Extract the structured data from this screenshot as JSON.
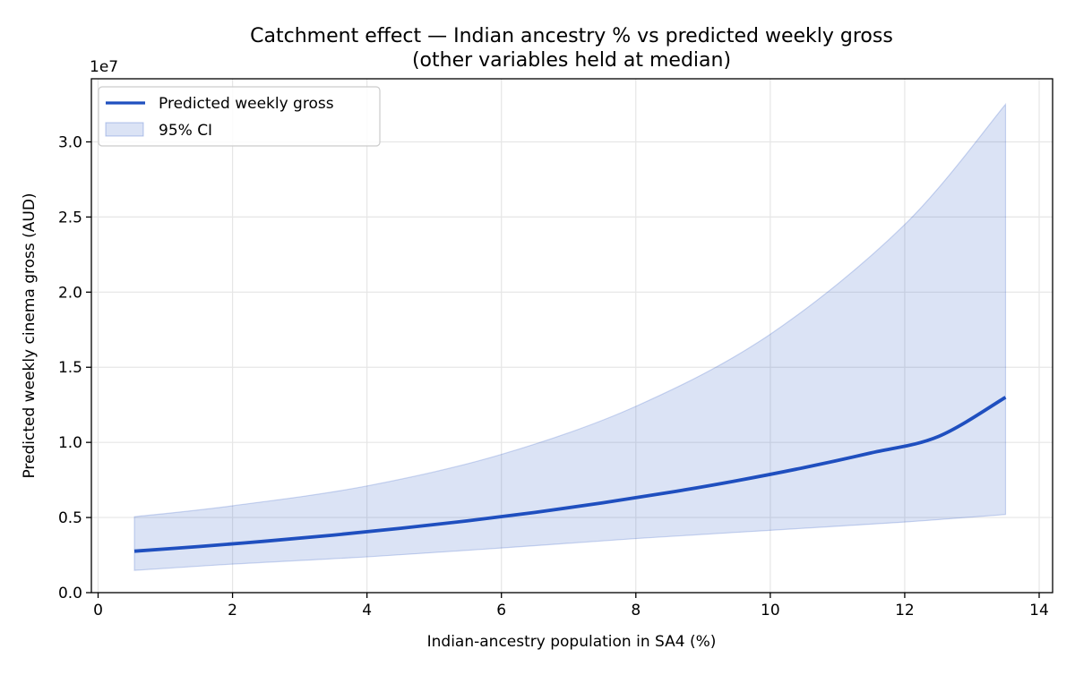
{
  "chart_data": {
    "type": "line",
    "title": "Catchment effect — Indian ancestry % vs predicted weekly gross",
    "subtitle": "(other variables held at median)",
    "xlabel": "Indian-ancestry population in SA4 (%)",
    "ylabel": "Predicted weekly cinema gross (AUD)",
    "y_offset_label": "1e7",
    "xlim": [
      -0.1,
      14.2
    ],
    "ylim": [
      0,
      3.42
    ],
    "x_ticks": [
      0,
      2,
      4,
      6,
      8,
      10,
      12,
      14
    ],
    "y_ticks": [
      0.0,
      0.5,
      1.0,
      1.5,
      2.0,
      2.5,
      3.0
    ],
    "x_tick_labels": [
      "0",
      "2",
      "4",
      "6",
      "8",
      "10",
      "12",
      "14"
    ],
    "y_tick_labels": [
      "0.0",
      "0.5",
      "1.0",
      "1.5",
      "2.0",
      "2.5",
      "3.0"
    ],
    "grid": true,
    "legend_position": "top-left",
    "series": [
      {
        "name": "Predicted weekly gross",
        "color": "#1f4fbf",
        "x": [
          0.54,
          1.5,
          2.5,
          3.5,
          4.5,
          5.5,
          6.5,
          7.5,
          8.5,
          9.5,
          10.5,
          11.5,
          12.5,
          13.5
        ],
        "values": [
          0.276,
          0.307,
          0.343,
          0.383,
          0.428,
          0.478,
          0.534,
          0.597,
          0.667,
          0.745,
          0.832,
          0.93,
          1.039,
          1.3
        ]
      }
    ],
    "confidence_band": {
      "name": "95% CI",
      "color": "#1f4fbf",
      "x": [
        0.54,
        2,
        4,
        6,
        8,
        10,
        12,
        13.5
      ],
      "lower": [
        0.148,
        0.19,
        0.238,
        0.297,
        0.36,
        0.415,
        0.47,
        0.52
      ],
      "upper": [
        0.505,
        0.578,
        0.71,
        0.92,
        1.24,
        1.72,
        2.45,
        3.25
      ]
    }
  }
}
